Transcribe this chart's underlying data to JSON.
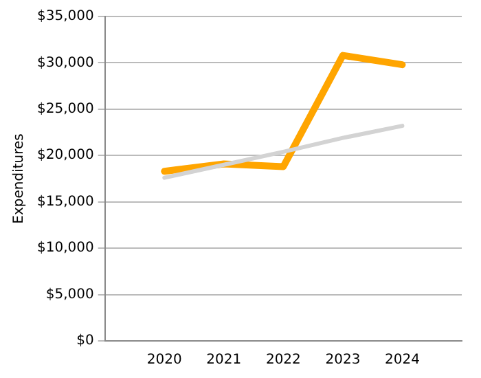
{
  "chart_data": {
    "type": "line",
    "ylabel": "Expenditures",
    "categories": [
      null,
      "2020",
      "2021",
      "2022",
      "2023",
      "2024",
      null
    ],
    "series": [
      {
        "color": "#d3d3d3",
        "values": [
          null,
          17600,
          19000,
          20400,
          21900,
          23200,
          null
        ]
      },
      {
        "color": "#ffa500",
        "values": [
          null,
          18300,
          19100,
          18800,
          30800,
          29800,
          null
        ]
      }
    ],
    "ylim": [
      0,
      35000
    ],
    "yticks": [
      {
        "value": 0,
        "label": "$0"
      },
      {
        "value": 5000,
        "label": "$5,000"
      },
      {
        "value": 10000,
        "label": "$10,000"
      },
      {
        "value": 15000,
        "label": "$15,000"
      },
      {
        "value": 20000,
        "label": "$20,000"
      },
      {
        "value": 25000,
        "label": "$25,000"
      },
      {
        "value": 30000,
        "label": "$30,000"
      },
      {
        "value": 35000,
        "label": "$35,000"
      }
    ],
    "grid": "y",
    "legend": false,
    "marker": "none",
    "line_style": "solid"
  }
}
